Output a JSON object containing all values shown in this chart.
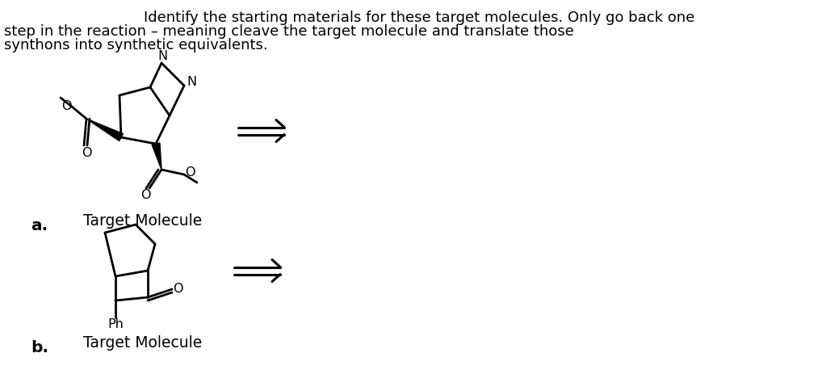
{
  "bg_color": "#ffffff",
  "text_color": "#000000",
  "title_lines": [
    "Identify the starting materials for these target molecules. Only go back one",
    "step in the reaction – meaning cleave the target molecule and translate those",
    "synthons into synthetic equivalents."
  ],
  "label_a": "a.",
  "label_b": "b.",
  "target_molecule_text": "Target Molecule",
  "font_size_title": 13.0,
  "font_size_label": 13.5,
  "font_size_struct": 11.5
}
